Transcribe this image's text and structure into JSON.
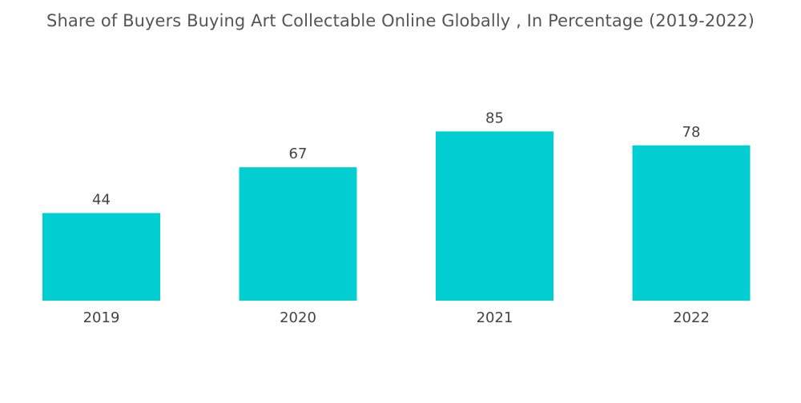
{
  "chart_data": {
    "type": "bar",
    "title": "Share of Buyers Buying Art Collectable Online Globally , In Percentage (2019-2022)",
    "categories": [
      "2019",
      "2020",
      "2021",
      "2022"
    ],
    "values": [
      44,
      67,
      85,
      78
    ],
    "value_labels": [
      "44",
      "67",
      "85",
      "78"
    ],
    "xlabel": "",
    "ylabel": "",
    "ylim": [
      0,
      100
    ],
    "grid": false,
    "bar_color": "#00CED1"
  }
}
